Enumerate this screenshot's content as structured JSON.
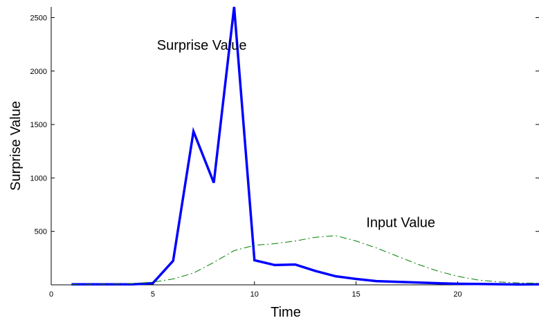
{
  "chart_data": {
    "type": "line",
    "title": "",
    "xlabel": "Time",
    "ylabel": "Surprise Value",
    "xlim": [
      0,
      24
    ],
    "ylim": [
      0,
      2600
    ],
    "xticks": [
      0,
      5,
      10,
      15,
      20
    ],
    "yticks": [
      500,
      1000,
      1500,
      2000,
      2500
    ],
    "grid": false,
    "series": [
      {
        "style": "solid",
        "color": "#0000ff",
        "x": [
          1,
          2,
          3,
          4,
          5,
          6,
          7,
          8,
          9,
          10,
          11,
          12,
          13,
          14,
          15,
          16,
          17,
          18,
          19,
          20,
          21,
          22,
          23,
          24
        ],
        "y": [
          5,
          5,
          5,
          5,
          15,
          225,
          1435,
          955,
          2600,
          230,
          185,
          190,
          130,
          80,
          55,
          35,
          28,
          22,
          15,
          10,
          8,
          6,
          3,
          5
        ]
      },
      {
        "style": "dash-dot",
        "color": "#007f00",
        "x": [
          1,
          2,
          3,
          4,
          5,
          6,
          7,
          8,
          9,
          10,
          11,
          12,
          13,
          14,
          15,
          16,
          17,
          18,
          19,
          20,
          21,
          22,
          23,
          24
        ],
        "y": [
          3,
          4,
          6,
          12,
          25,
          55,
          110,
          210,
          320,
          370,
          385,
          410,
          445,
          460,
          410,
          345,
          270,
          195,
          130,
          80,
          45,
          28,
          18,
          15
        ]
      }
    ],
    "annotations": [
      {
        "text": "Surprise Value",
        "x": 5.2,
        "y": 2200
      },
      {
        "text": "Input Value",
        "x": 15.5,
        "y": 540
      }
    ]
  }
}
